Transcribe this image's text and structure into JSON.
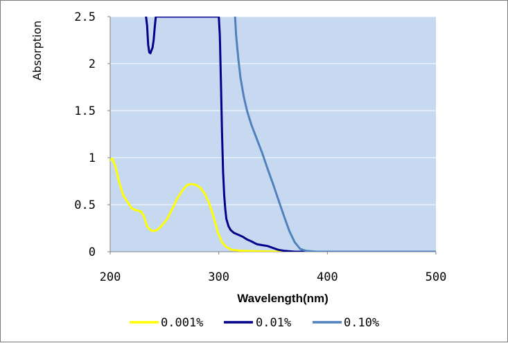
{
  "chart_data": {
    "type": "line",
    "title": "",
    "xlabel": "Wavelength(nm)",
    "ylabel": "Absorption",
    "xlim": [
      200,
      500
    ],
    "ylim": [
      0,
      2.5
    ],
    "x_ticks": [
      200,
      300,
      400,
      500
    ],
    "x_tick_labels": [
      "200",
      "300",
      "400",
      "500"
    ],
    "y_ticks": [
      0,
      0.5,
      1,
      1.5,
      2,
      2.5
    ],
    "y_tick_labels": [
      "0",
      "0.5",
      "1",
      "1.5",
      "2",
      "2.5"
    ],
    "grid": "horizontal",
    "plot_background": "#c6d9f1",
    "legend_position": "bottom",
    "series": [
      {
        "name": "0.001%",
        "color": "#ffff00",
        "points": [
          [
            200,
            0.97
          ],
          [
            202,
            0.99
          ],
          [
            205,
            0.9
          ],
          [
            208,
            0.75
          ],
          [
            212,
            0.6
          ],
          [
            216,
            0.53
          ],
          [
            220,
            0.46
          ],
          [
            224,
            0.44
          ],
          [
            228,
            0.43
          ],
          [
            231,
            0.38
          ],
          [
            234,
            0.27
          ],
          [
            237,
            0.23
          ],
          [
            240,
            0.22
          ],
          [
            243,
            0.23
          ],
          [
            247,
            0.27
          ],
          [
            252,
            0.34
          ],
          [
            257,
            0.45
          ],
          [
            262,
            0.57
          ],
          [
            267,
            0.66
          ],
          [
            271,
            0.71
          ],
          [
            275,
            0.72
          ],
          [
            279,
            0.71
          ],
          [
            283,
            0.68
          ],
          [
            287,
            0.62
          ],
          [
            291,
            0.52
          ],
          [
            295,
            0.38
          ],
          [
            299,
            0.21
          ],
          [
            303,
            0.1
          ],
          [
            307,
            0.05
          ],
          [
            312,
            0.02
          ],
          [
            320,
            0.01
          ],
          [
            335,
            0.005
          ],
          [
            360,
            0.0
          ],
          [
            500,
            0.0
          ]
        ]
      },
      {
        "name": "0.01%",
        "color": "#00008b",
        "points": [
          [
            233,
            2.5
          ],
          [
            234,
            2.4
          ],
          [
            235,
            2.2
          ],
          [
            236,
            2.12
          ],
          [
            237,
            2.11
          ],
          [
            239,
            2.17
          ],
          [
            240,
            2.25
          ],
          [
            241,
            2.38
          ],
          [
            242,
            2.5
          ],
          [
            300,
            2.5
          ],
          [
            301,
            2.3
          ],
          [
            302,
            1.8
          ],
          [
            303,
            1.25
          ],
          [
            304,
            0.85
          ],
          [
            305,
            0.6
          ],
          [
            306,
            0.45
          ],
          [
            307,
            0.35
          ],
          [
            309,
            0.27
          ],
          [
            311,
            0.23
          ],
          [
            314,
            0.2
          ],
          [
            318,
            0.18
          ],
          [
            322,
            0.16
          ],
          [
            326,
            0.13
          ],
          [
            330,
            0.11
          ],
          [
            335,
            0.08
          ],
          [
            340,
            0.07
          ],
          [
            345,
            0.06
          ],
          [
            350,
            0.04
          ],
          [
            355,
            0.02
          ],
          [
            360,
            0.01
          ],
          [
            370,
            0.0
          ],
          [
            500,
            0.0
          ]
        ]
      },
      {
        "name": "0.10%",
        "color": "#4f81bd",
        "points": [
          [
            315,
            2.5
          ],
          [
            316,
            2.3
          ],
          [
            318,
            2.05
          ],
          [
            320,
            1.85
          ],
          [
            323,
            1.65
          ],
          [
            326,
            1.5
          ],
          [
            330,
            1.35
          ],
          [
            335,
            1.2
          ],
          [
            340,
            1.05
          ],
          [
            345,
            0.88
          ],
          [
            350,
            0.72
          ],
          [
            355,
            0.55
          ],
          [
            360,
            0.38
          ],
          [
            365,
            0.22
          ],
          [
            370,
            0.1
          ],
          [
            375,
            0.03
          ],
          [
            380,
            0.01
          ],
          [
            390,
            0.0
          ],
          [
            500,
            0.0
          ]
        ]
      }
    ]
  }
}
